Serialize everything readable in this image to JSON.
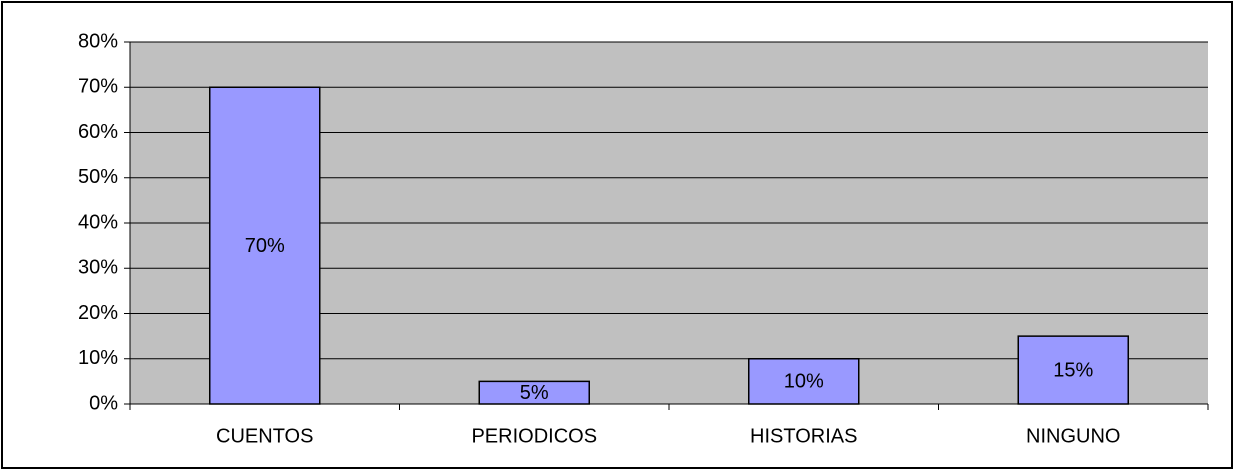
{
  "chart_data": {
    "type": "bar",
    "categories": [
      "CUENTOS",
      "PERIODICOS",
      "HISTORIAS",
      "NINGUNO"
    ],
    "values": [
      70,
      5,
      10,
      15
    ],
    "value_labels": [
      "70%",
      "5%",
      "10%",
      "15%"
    ],
    "color": "#9999ff",
    "ylim": [
      0,
      80
    ],
    "yticks": [
      {
        "value": 0,
        "label": "0%"
      },
      {
        "value": 10,
        "label": "10%"
      },
      {
        "value": 20,
        "label": "20%"
      },
      {
        "value": 30,
        "label": "30%"
      },
      {
        "value": 40,
        "label": "40%"
      },
      {
        "value": 50,
        "label": "50%"
      },
      {
        "value": 60,
        "label": "60%"
      },
      {
        "value": 70,
        "label": "70%"
      },
      {
        "value": 80,
        "label": "80%"
      }
    ],
    "grid": true
  }
}
